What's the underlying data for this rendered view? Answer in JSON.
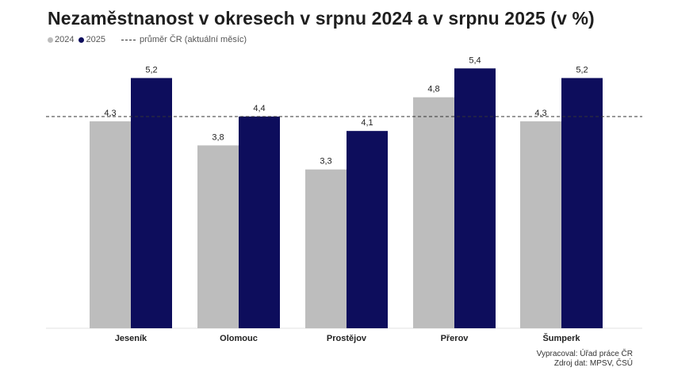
{
  "chart_data": {
    "type": "bar",
    "title": "Nezaměstnanost v okresech v srpnu 2024 a v srpnu 2025 (v %)",
    "categories": [
      "Jeseník",
      "Olomouc",
      "Prostějov",
      "Přerov",
      "Šumperk"
    ],
    "series": [
      {
        "name": "2024",
        "color": "#bdbdbd",
        "values": [
          4.3,
          3.8,
          3.3,
          4.8,
          4.3
        ],
        "labels": [
          "4,3",
          "3,8",
          "3,3",
          "4,8",
          "4,3"
        ]
      },
      {
        "name": "2025",
        "color": "#0d0d5c",
        "values": [
          5.2,
          4.4,
          4.1,
          5.4,
          5.2
        ],
        "labels": [
          "5,2",
          "4,4",
          "4,1",
          "5,4",
          "5,2"
        ]
      }
    ],
    "reference_line": {
      "label": "průměr ČR (aktuální měsíc)",
      "value": 4.4
    },
    "ylim": [
      0,
      5.8
    ],
    "xlabel": "",
    "ylabel": "",
    "grid": false
  },
  "credits": {
    "line1": "Vypracoval: Úřad práce ČR",
    "line2": "Zdroj dat: MPSV, ČSÚ"
  }
}
